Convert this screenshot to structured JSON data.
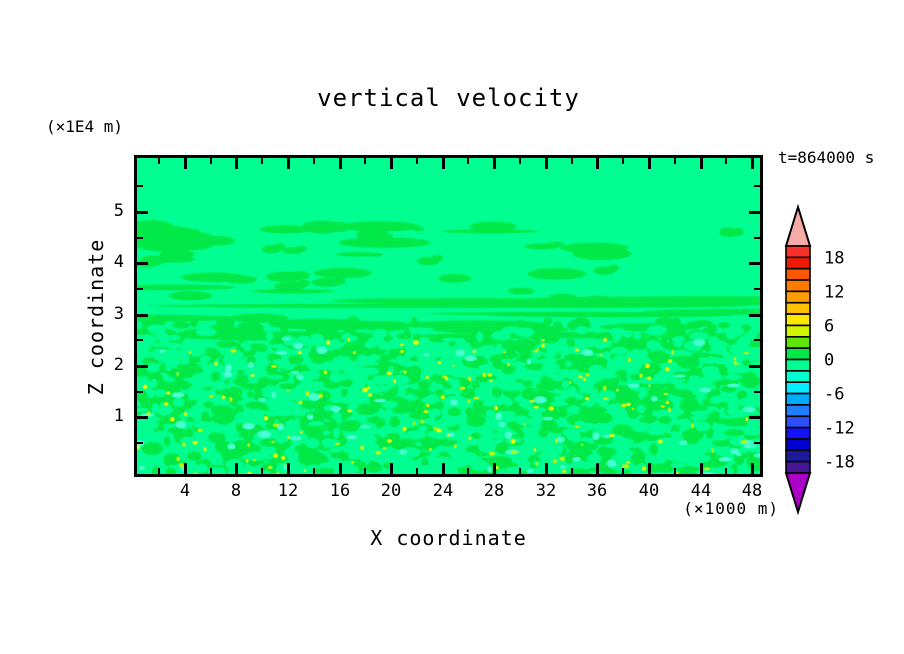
{
  "chart_data": {
    "type": "contour",
    "title": "vertical velocity",
    "annotation": "t=864000 s",
    "xlabel": "X coordinate",
    "xunit": "(×1000 m)",
    "ylabel": "Z coordinate",
    "yunit": "(×1E4 m)",
    "x_axis": {
      "min": 0.3,
      "max": 48.6,
      "major_ticks": [
        4,
        8,
        12,
        16,
        20,
        24,
        28,
        32,
        36,
        40,
        44,
        48
      ],
      "minor_offset": -2
    },
    "y_axis": {
      "min": -0.1,
      "max": 6.05,
      "major_ticks": [
        1,
        2,
        3,
        4,
        5
      ],
      "minor_ticks": [
        0.5,
        1.5,
        2.5,
        3.5,
        4.5,
        5.5
      ]
    },
    "colorbar": {
      "max": 20,
      "min": -20,
      "step": 2,
      "colors_top_to_bottom": [
        "#f93128",
        "#ef1802",
        "#fb5800",
        "#ff7b00",
        "#ff9e00",
        "#ffc100",
        "#ffe800",
        "#d2f500",
        "#5fe405",
        "#00e948",
        "#00fe90",
        "#00ffcf",
        "#00eeff",
        "#00aaff",
        "#1e7eff",
        "#2c50fa",
        "#1412fa",
        "#0003cf",
        "#1d1a9b",
        "#471693"
      ],
      "over_color": "#f7aba6",
      "under_color": "#ab00c8",
      "boundary_labels": [
        "18",
        "12",
        "6",
        "0",
        "-6",
        "-12",
        "-18"
      ],
      "label_boundary_idx": [
        1,
        4,
        7,
        10,
        13,
        16,
        19
      ]
    },
    "field": {
      "description": "Mint-green background (w between -2 and 0). Elongated green patches (0 to 2) between z=3.5 and z=5; thin horizontal green streaks near z=3; dense turbulent speckle of green, mint, aqua patches with small yellow/chartreuse maxima below z=3.",
      "background": "#00fe90",
      "green": "#00e948",
      "aqua": "#49ffd3",
      "yellow": "#f6ff00",
      "chartreuse": "#c8f400",
      "seed": 987654321,
      "upper_blob_count": 38,
      "streak_count": 8,
      "transition_blob_count": 14,
      "speckle_green_count": 740,
      "speckle_mint_count": 370,
      "aqua_count": 68,
      "yellow_count": 118,
      "chartreuse_count": 36
    }
  }
}
